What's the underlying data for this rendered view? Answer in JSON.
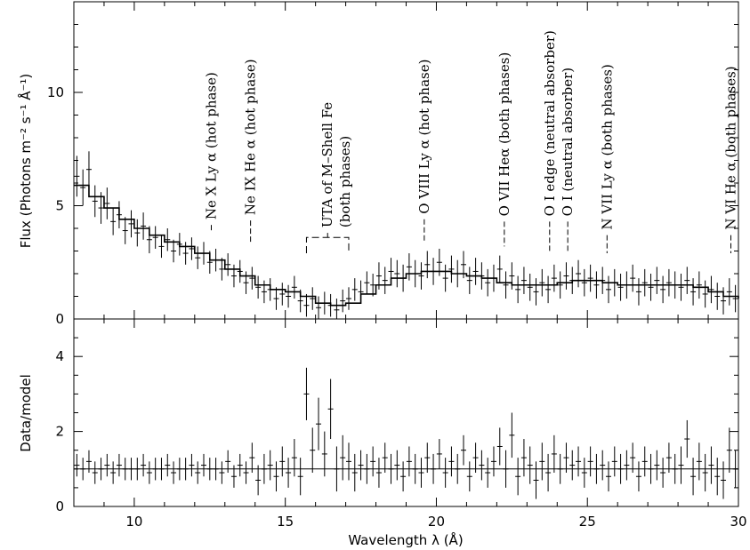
{
  "chart_data": [
    {
      "type": "scatter",
      "panel": "top",
      "xlabel": "",
      "ylabel": "Flux (Photons m⁻² s⁻¹ Å⁻¹)",
      "xlim": [
        8,
        30
      ],
      "ylim": [
        0,
        14
      ],
      "x_ticks": [
        10,
        15,
        20,
        25,
        30
      ],
      "y_ticks": [
        0,
        5,
        10
      ],
      "y_tick_labels": [
        "0",
        "5",
        "10"
      ],
      "grid": false,
      "series": [
        {
          "kind": "model_step",
          "x": [
            8,
            8.5,
            9,
            9.5,
            10,
            10.5,
            11,
            11.5,
            12,
            12.5,
            13,
            13.5,
            14,
            14.5,
            15,
            15.5,
            16,
            16.5,
            17,
            17.5,
            18,
            18.5,
            19,
            19.5,
            20,
            20.5,
            21,
            21.5,
            22,
            22.5,
            23,
            23.5,
            24,
            24.5,
            25,
            25.5,
            26,
            26.5,
            27,
            27.5,
            28,
            28.5,
            29,
            29.5,
            30
          ],
          "values": [
            5.9,
            5.4,
            4.9,
            4.4,
            4.0,
            3.7,
            3.4,
            3.2,
            2.9,
            2.6,
            2.2,
            1.9,
            1.5,
            1.3,
            1.2,
            1.0,
            0.7,
            0.6,
            0.7,
            1.1,
            1.5,
            1.8,
            2.0,
            2.1,
            2.1,
            2.0,
            1.9,
            1.8,
            1.6,
            1.5,
            1.5,
            1.5,
            1.6,
            1.7,
            1.7,
            1.6,
            1.5,
            1.5,
            1.5,
            1.5,
            1.5,
            1.4,
            1.2,
            1.0,
            0.9
          ]
        },
        {
          "kind": "data",
          "x": [
            8.1,
            8.3,
            8.5,
            8.7,
            8.9,
            9.1,
            9.3,
            9.5,
            9.7,
            9.9,
            10.1,
            10.3,
            10.5,
            10.7,
            10.9,
            11.1,
            11.3,
            11.5,
            11.7,
            11.9,
            12.1,
            12.3,
            12.5,
            12.7,
            12.9,
            13.1,
            13.3,
            13.5,
            13.7,
            13.9,
            14.1,
            14.3,
            14.5,
            14.7,
            14.9,
            15.1,
            15.3,
            15.5,
            15.7,
            15.9,
            16.1,
            16.3,
            16.5,
            16.7,
            16.9,
            17.1,
            17.3,
            17.5,
            17.7,
            17.9,
            18.1,
            18.3,
            18.5,
            18.7,
            18.9,
            19.1,
            19.3,
            19.5,
            19.7,
            19.9,
            20.1,
            20.3,
            20.5,
            20.7,
            20.9,
            21.1,
            21.3,
            21.5,
            21.7,
            21.9,
            22.1,
            22.3,
            22.5,
            22.7,
            22.9,
            23.1,
            23.3,
            23.5,
            23.7,
            23.9,
            24.1,
            24.3,
            24.5,
            24.7,
            24.9,
            25.1,
            25.3,
            25.5,
            25.7,
            25.9,
            26.1,
            26.3,
            26.5,
            26.7,
            26.9,
            27.1,
            27.3,
            27.5,
            27.7,
            27.9,
            28.1,
            28.3,
            28.5,
            28.7,
            28.9,
            29.1,
            29.3,
            29.5,
            29.7,
            29.9
          ],
          "values": [
            6.3,
            5.8,
            6.6,
            5.2,
            4.9,
            5.1,
            4.3,
            4.6,
            3.9,
            4.2,
            3.8,
            4.1,
            3.5,
            3.6,
            3.2,
            3.5,
            3.0,
            3.3,
            2.9,
            3.1,
            2.7,
            2.9,
            2.5,
            2.6,
            2.2,
            2.4,
            1.9,
            2.1,
            1.6,
            1.8,
            1.4,
            1.2,
            1.3,
            0.9,
            1.1,
            1.0,
            1.4,
            0.8,
            0.6,
            0.9,
            0.5,
            0.7,
            0.6,
            0.4,
            0.8,
            0.9,
            1.3,
            1.2,
            1.6,
            1.5,
            1.9,
            1.7,
            2.1,
            2.0,
            1.8,
            2.3,
            2.0,
            1.9,
            2.4,
            2.1,
            2.5,
            1.8,
            2.2,
            2.0,
            2.4,
            1.7,
            2.1,
            1.9,
            1.6,
            1.8,
            2.2,
            1.5,
            1.9,
            1.3,
            1.7,
            1.4,
            1.2,
            1.6,
            1.3,
            1.8,
            1.5,
            1.9,
            1.7,
            2.0,
            1.6,
            1.8,
            1.5,
            1.7,
            1.3,
            1.6,
            1.4,
            1.5,
            1.8,
            1.2,
            1.6,
            1.4,
            1.7,
            1.3,
            1.6,
            1.5,
            1.4,
            1.7,
            1.2,
            1.5,
            1.1,
            1.3,
            1.0,
            0.8,
            1.2,
            0.9
          ],
          "errors": [
            0.9,
            0.8,
            0.8,
            0.7,
            0.7,
            0.7,
            0.6,
            0.6,
            0.6,
            0.6,
            0.6,
            0.6,
            0.6,
            0.5,
            0.5,
            0.5,
            0.5,
            0.5,
            0.5,
            0.5,
            0.5,
            0.5,
            0.5,
            0.5,
            0.5,
            0.5,
            0.5,
            0.5,
            0.5,
            0.5,
            0.5,
            0.5,
            0.5,
            0.5,
            0.5,
            0.5,
            0.5,
            0.5,
            0.5,
            0.5,
            0.5,
            0.5,
            0.5,
            0.5,
            0.5,
            0.5,
            0.5,
            0.5,
            0.5,
            0.5,
            0.6,
            0.6,
            0.6,
            0.6,
            0.6,
            0.6,
            0.6,
            0.6,
            0.6,
            0.6,
            0.6,
            0.6,
            0.6,
            0.6,
            0.6,
            0.6,
            0.6,
            0.6,
            0.6,
            0.6,
            0.6,
            0.6,
            0.6,
            0.6,
            0.6,
            0.6,
            0.6,
            0.6,
            0.6,
            0.6,
            0.6,
            0.6,
            0.6,
            0.6,
            0.6,
            0.6,
            0.6,
            0.6,
            0.6,
            0.6,
            0.6,
            0.6,
            0.6,
            0.6,
            0.6,
            0.6,
            0.6,
            0.6,
            0.6,
            0.6,
            0.6,
            0.6,
            0.6,
            0.6,
            0.6,
            0.6,
            0.6,
            0.6,
            0.6,
            0.6
          ]
        }
      ],
      "annotations": [
        {
          "text": "Ne X Ly α  (hot phase)",
          "x": 12.55,
          "line_top": 4.15,
          "line_bottom": 3.8
        },
        {
          "text": "Ne IX He α  (hot phase)",
          "x": 13.85,
          "line_top": 4.35,
          "line_bottom": 3.4
        },
        {
          "text": "UTA of M–Shell Fe",
          "text2": "(both phases)",
          "x": 16.4,
          "line_top": 3.8,
          "line_bottom": 3.6,
          "bracket_from": 15.7,
          "bracket_to": 17.1,
          "bracket_y": 3.6,
          "bracket_drop": 2.9
        },
        {
          "text": "O VIII Ly α  (hot phase)",
          "x": 19.6,
          "line_top": 4.4,
          "line_bottom": 3.4
        },
        {
          "text": "O VII Heα   (both phases)",
          "x": 22.25,
          "line_top": 4.3,
          "line_bottom": 3.2
        },
        {
          "text": "O I  edge (neutral absorber)",
          "x": 23.75,
          "line_top": 4.3,
          "line_bottom": 3.0
        },
        {
          "text": "O I  (neutral absorber)",
          "x": 24.35,
          "line_top": 4.3,
          "line_bottom": 3.0
        },
        {
          "text": "N VII Ly α  (both phases)",
          "x": 25.65,
          "line_top": 3.7,
          "line_bottom": 2.9
        },
        {
          "text": "N VI He α  (both phases)",
          "x": 29.75,
          "line_top": 3.7,
          "line_bottom": 2.9
        }
      ]
    },
    {
      "type": "scatter",
      "panel": "bottom",
      "xlabel": "Wavelength λ (Å)",
      "ylabel": "Data/model",
      "xlim": [
        8,
        30
      ],
      "ylim": [
        0,
        5
      ],
      "x_ticks": [
        10,
        15,
        20,
        25,
        30
      ],
      "y_ticks": [
        0,
        2,
        4
      ],
      "y_tick_labels": [
        "0",
        "2",
        "4"
      ],
      "reference_line": 1,
      "grid": false,
      "series": [
        {
          "kind": "ratio",
          "x": [
            8.1,
            8.3,
            8.5,
            8.7,
            8.9,
            9.1,
            9.3,
            9.5,
            9.7,
            9.9,
            10.1,
            10.3,
            10.5,
            10.7,
            10.9,
            11.1,
            11.3,
            11.5,
            11.7,
            11.9,
            12.1,
            12.3,
            12.5,
            12.7,
            12.9,
            13.1,
            13.3,
            13.5,
            13.7,
            13.9,
            14.1,
            14.3,
            14.5,
            14.7,
            14.9,
            15.1,
            15.3,
            15.5,
            15.7,
            15.9,
            16.1,
            16.3,
            16.5,
            16.7,
            16.9,
            17.1,
            17.3,
            17.5,
            17.7,
            17.9,
            18.1,
            18.3,
            18.5,
            18.7,
            18.9,
            19.1,
            19.3,
            19.5,
            19.7,
            19.9,
            20.1,
            20.3,
            20.5,
            20.7,
            20.9,
            21.1,
            21.3,
            21.5,
            21.7,
            21.9,
            22.1,
            22.3,
            22.5,
            22.7,
            22.9,
            23.1,
            23.3,
            23.5,
            23.7,
            23.9,
            24.1,
            24.3,
            24.5,
            24.7,
            24.9,
            25.1,
            25.3,
            25.5,
            25.7,
            25.9,
            26.1,
            26.3,
            26.5,
            26.7,
            26.9,
            27.1,
            27.3,
            27.5,
            27.7,
            27.9,
            28.1,
            28.3,
            28.5,
            28.7,
            28.9,
            29.1,
            29.3,
            29.5,
            29.7,
            29.9
          ],
          "values": [
            1.1,
            1.0,
            1.2,
            0.9,
            1.0,
            1.1,
            0.9,
            1.1,
            1.0,
            1.0,
            1.0,
            1.1,
            0.9,
            1.0,
            1.0,
            1.1,
            0.9,
            1.0,
            1.0,
            1.1,
            0.9,
            1.1,
            1.0,
            1.0,
            0.9,
            1.2,
            0.8,
            1.1,
            0.9,
            1.3,
            0.7,
            1.0,
            1.1,
            0.8,
            1.2,
            0.9,
            1.3,
            0.8,
            3.0,
            1.5,
            2.2,
            1.4,
            2.6,
            1.0,
            1.3,
            1.2,
            0.9,
            1.1,
            1.0,
            1.2,
            0.9,
            1.3,
            1.0,
            1.1,
            0.8,
            1.2,
            1.0,
            0.9,
            1.3,
            1.0,
            1.4,
            0.9,
            1.2,
            1.0,
            1.5,
            0.8,
            1.3,
            1.1,
            0.9,
            1.2,
            1.6,
            1.0,
            1.9,
            0.8,
            1.3,
            1.1,
            0.7,
            1.2,
            0.9,
            1.4,
            1.0,
            1.3,
            1.1,
            1.2,
            0.9,
            1.2,
            1.0,
            1.1,
            0.8,
            1.2,
            1.0,
            1.1,
            1.3,
            0.8,
            1.2,
            1.0,
            1.1,
            0.9,
            1.3,
            1.0,
            1.1,
            1.8,
            0.8,
            1.2,
            0.9,
            1.1,
            0.8,
            0.7,
            1.5,
            1.0
          ],
          "errors": [
            0.3,
            0.3,
            0.3,
            0.3,
            0.3,
            0.3,
            0.3,
            0.3,
            0.3,
            0.3,
            0.3,
            0.3,
            0.3,
            0.3,
            0.3,
            0.3,
            0.3,
            0.3,
            0.3,
            0.3,
            0.3,
            0.3,
            0.3,
            0.3,
            0.3,
            0.3,
            0.3,
            0.3,
            0.3,
            0.4,
            0.4,
            0.4,
            0.4,
            0.4,
            0.4,
            0.4,
            0.5,
            0.5,
            0.7,
            0.6,
            0.7,
            0.6,
            0.8,
            0.6,
            0.6,
            0.5,
            0.5,
            0.4,
            0.4,
            0.4,
            0.4,
            0.4,
            0.4,
            0.4,
            0.4,
            0.4,
            0.4,
            0.4,
            0.4,
            0.4,
            0.4,
            0.4,
            0.4,
            0.4,
            0.4,
            0.4,
            0.4,
            0.4,
            0.4,
            0.4,
            0.5,
            0.5,
            0.6,
            0.5,
            0.5,
            0.5,
            0.5,
            0.5,
            0.5,
            0.5,
            0.4,
            0.4,
            0.4,
            0.4,
            0.4,
            0.4,
            0.4,
            0.4,
            0.4,
            0.4,
            0.4,
            0.4,
            0.4,
            0.4,
            0.4,
            0.4,
            0.4,
            0.4,
            0.4,
            0.4,
            0.5,
            0.5,
            0.5,
            0.5,
            0.5,
            0.5,
            0.5,
            0.5,
            0.6,
            0.5
          ]
        }
      ]
    }
  ]
}
